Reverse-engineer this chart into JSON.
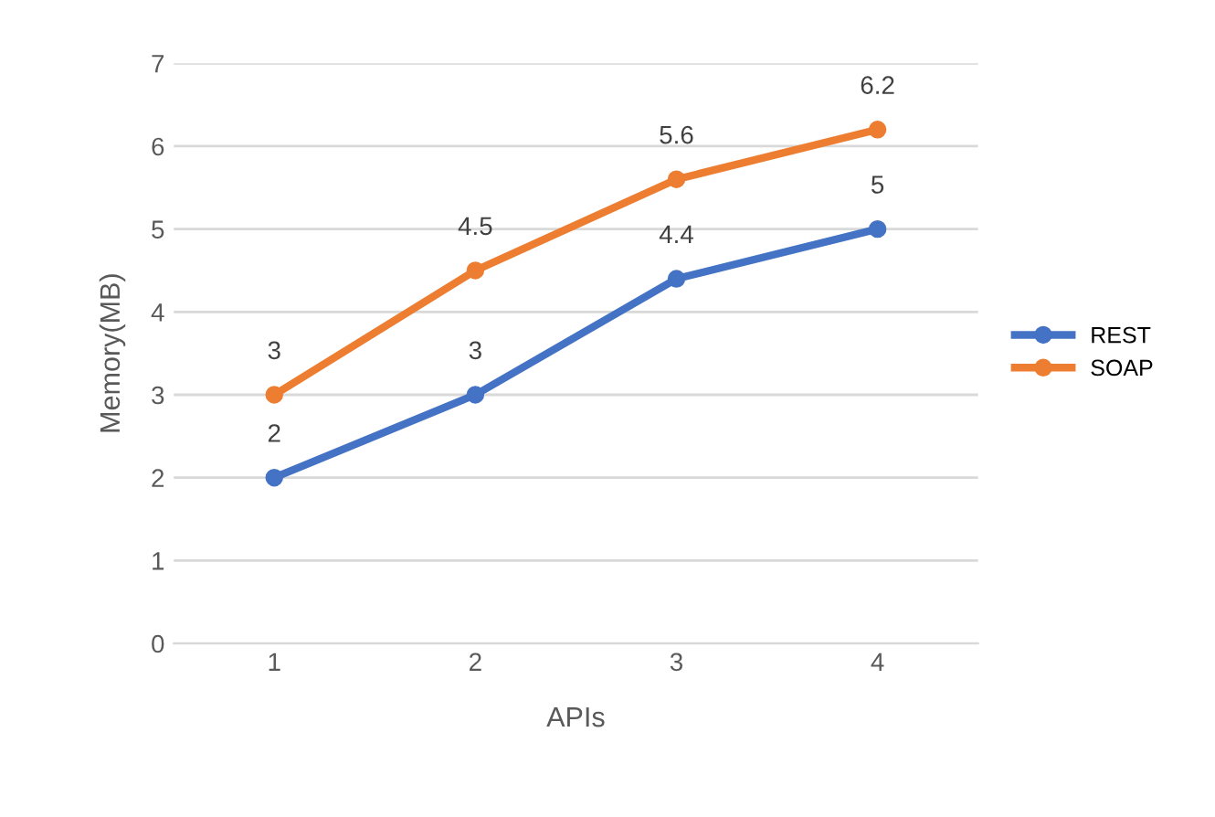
{
  "chart_data": {
    "type": "line",
    "xlabel": "APIs",
    "ylabel": "Memory(MB)",
    "categories": [
      "1",
      "2",
      "3",
      "4"
    ],
    "series": [
      {
        "name": "REST",
        "color": "#4472c4",
        "values": [
          2,
          3,
          4.4,
          5
        ]
      },
      {
        "name": "SOAP",
        "color": "#ed7d31",
        "values": [
          3,
          4.5,
          5.6,
          6.2
        ]
      }
    ],
    "ylim": [
      0,
      7
    ],
    "yticks": [
      0,
      1,
      2,
      3,
      4,
      5,
      6,
      7
    ],
    "grid": "y",
    "legend": "right",
    "marker": "circle",
    "line_style": "solid",
    "data_labels": true
  }
}
